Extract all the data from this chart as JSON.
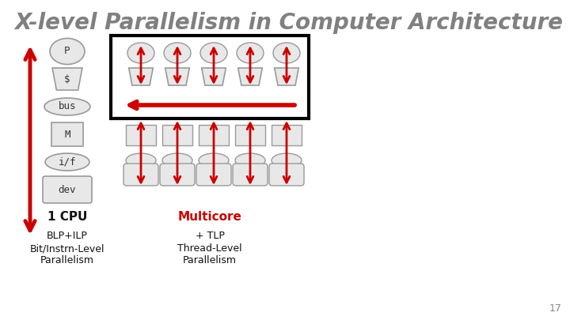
{
  "title": "X-level Parallelism in Computer Architecture",
  "title_color": "#808080",
  "title_fontsize": 20,
  "bg_color": "#ffffff",
  "arrow_color": "#cc0000",
  "box_fc": "#e8e8e8",
  "box_ec": "#999999",
  "text_color_black": "#111111",
  "text_color_red": "#cc0000",
  "label_p": "P",
  "label_dollar": "$",
  "label_bus": "bus",
  "label_m": "M",
  "label_if": "i/f",
  "label_dev": "dev",
  "cpu_label": "1 CPU",
  "multicore_label": "Multicore",
  "blp_label": "BLP+ILP",
  "bit_label": "Bit/Instrn-Level\nParallelism",
  "tlp_label": "+ TLP",
  "thread_label": "Thread-Level\nParallelism",
  "page_number": "17",
  "n_cores": 5
}
